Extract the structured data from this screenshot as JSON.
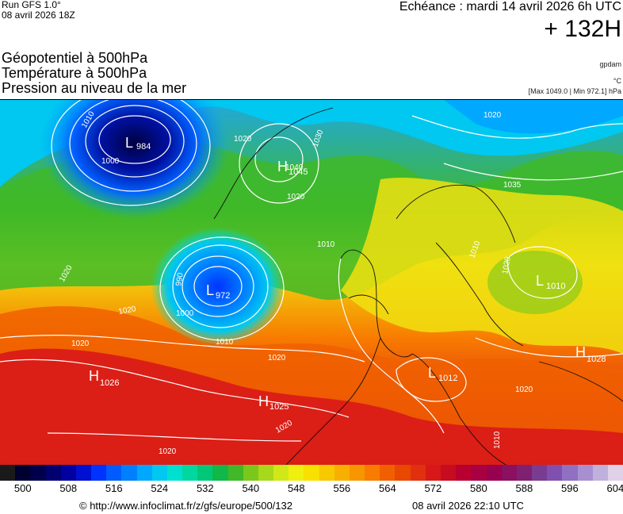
{
  "header": {
    "run_line1": "Run GFS 1.0°",
    "run_line2": "08 avril 2026 18Z",
    "echeance": "Echéance : mardi 14 avril 2026 6h UTC",
    "horizon": "+ 132H"
  },
  "titles": [
    "Géopotentiel à 500hPa",
    "Température à 500hPa",
    "Pression au niveau de la mer"
  ],
  "units": {
    "geopotential": "gpdam",
    "temperature": "°C",
    "pressure_range": "[Max 1049.0 | Min 972.1] hPa"
  },
  "map": {
    "pressure_centers": [
      {
        "letter": "L",
        "value": "984"
      },
      {
        "letter": "H",
        "value": "1045"
      },
      {
        "letter": "L",
        "value": "972"
      },
      {
        "letter": "H",
        "value": "1026"
      },
      {
        "letter": "H",
        "value": "1025"
      },
      {
        "letter": "L",
        "value": "1012"
      },
      {
        "letter": "L",
        "value": "1010"
      },
      {
        "letter": "H",
        "value": "1028"
      }
    ],
    "isobar_labels": [
      "1010",
      "1000",
      "990",
      "1000",
      "1010",
      "1020",
      "1020",
      "1020",
      "1020",
      "1020",
      "1020",
      "1030",
      "1035",
      "1020",
      "1010",
      "1020",
      "1010",
      "1020",
      "1020",
      "1020",
      "1010",
      "1040"
    ]
  },
  "color_scale": {
    "colors": [
      "#1a1a1a",
      "#000030",
      "#00004a",
      "#000070",
      "#0000a0",
      "#0010d0",
      "#0033ff",
      "#005cff",
      "#0080ff",
      "#00a8ff",
      "#00c8f0",
      "#00e0d0",
      "#00d8a0",
      "#00c878",
      "#10b848",
      "#40b828",
      "#7ac81c",
      "#a8d81a",
      "#d0e818",
      "#f0f010",
      "#f8e000",
      "#f8c800",
      "#f8b000",
      "#f89600",
      "#f87c00",
      "#f06000",
      "#e84800",
      "#e03010",
      "#d81818",
      "#c80c20",
      "#b80030",
      "#a80040",
      "#980050",
      "#8c1060",
      "#802070",
      "#7a3c90",
      "#8050b0",
      "#9070c0",
      "#a890d0",
      "#c0b0dc",
      "#e0d0e8"
    ],
    "ticks": [
      "500",
      "508",
      "516",
      "524",
      "532",
      "540",
      "548",
      "556",
      "564",
      "572",
      "580",
      "588",
      "596",
      "604"
    ]
  },
  "footer": {
    "url": "© http://www.infoclimat.fr/z/gfs/europe/500/132",
    "timestamp": "08 avril 2026 22:10 UTC"
  }
}
